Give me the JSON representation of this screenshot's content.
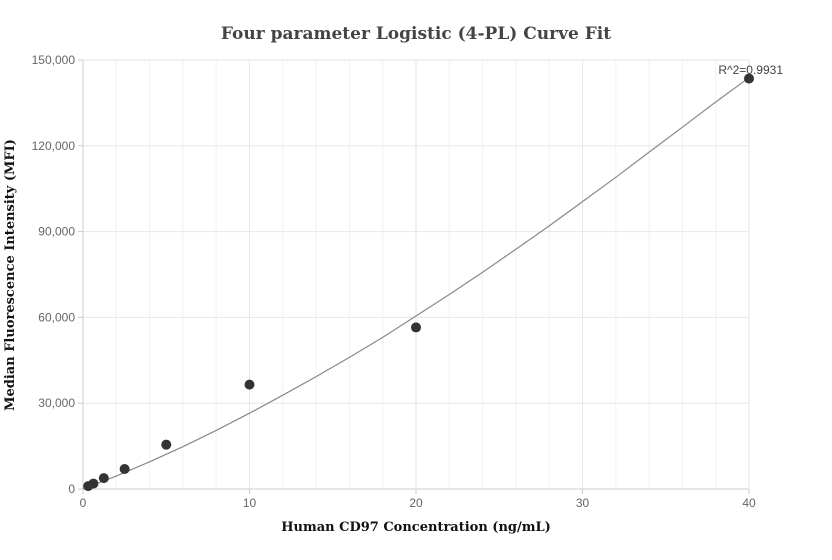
{
  "chart_data": {
    "type": "scatter",
    "title": "Four parameter Logistic (4-PL) Curve Fit",
    "xlabel": "Human CD97 Concentration (ng/mL)",
    "ylabel": "Median Fluorescence Intensity (MFI)",
    "xlim": [
      0,
      40
    ],
    "ylim": [
      0,
      150000
    ],
    "x_ticks": [
      0,
      10,
      20,
      30,
      40
    ],
    "y_ticks": [
      0,
      30000,
      60000,
      90000,
      120000,
      150000
    ],
    "x_tick_labels": [
      "0",
      "10",
      "20",
      "30",
      "40"
    ],
    "y_tick_labels": [
      "0",
      "30,000",
      "60,000",
      "90,000",
      "120,000",
      "150,000"
    ],
    "grid": true,
    "points": [
      {
        "x": 0.3125,
        "y": 1000
      },
      {
        "x": 0.625,
        "y": 1900
      },
      {
        "x": 1.25,
        "y": 3800
      },
      {
        "x": 2.5,
        "y": 7000
      },
      {
        "x": 5,
        "y": 15500
      },
      {
        "x": 10,
        "y": 36500
      },
      {
        "x": 20,
        "y": 56500
      },
      {
        "x": 40,
        "y": 143500
      }
    ],
    "fit_curve": {
      "x": [
        0,
        2,
        4,
        6,
        8,
        10,
        12,
        14,
        16,
        18,
        20,
        22,
        24,
        26,
        28,
        30,
        32,
        34,
        36,
        38,
        40
      ],
      "y": [
        0,
        4500,
        9500,
        14800,
        20500,
        26500,
        32800,
        39300,
        46000,
        53000,
        60500,
        68000,
        75800,
        83800,
        92000,
        100500,
        109000,
        117800,
        126500,
        135300,
        143800
      ]
    },
    "annotation": "R^2=0.9931",
    "colors": {
      "points": "#333333",
      "curve": "#888888",
      "grid": "#e6e6ee",
      "axis": "#cccccc"
    }
  }
}
